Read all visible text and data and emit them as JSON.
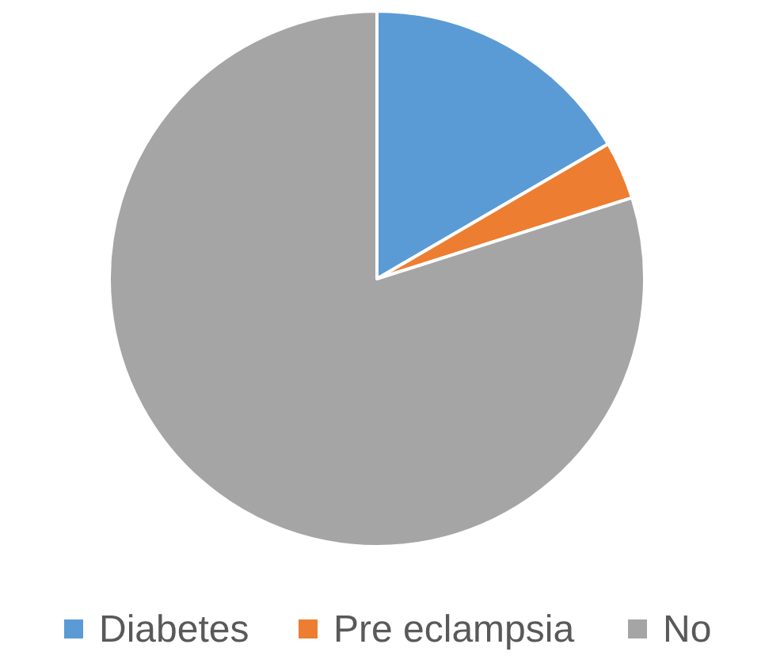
{
  "chart_data": {
    "type": "pie",
    "categories": [
      "Diabetes",
      "Pre eclampsia",
      "No"
    ],
    "values": [
      16.6,
      3.5,
      79.9
    ],
    "colors": [
      "#5b9bd5",
      "#ed7d31",
      "#a5a5a5"
    ],
    "legend": "bottom"
  }
}
